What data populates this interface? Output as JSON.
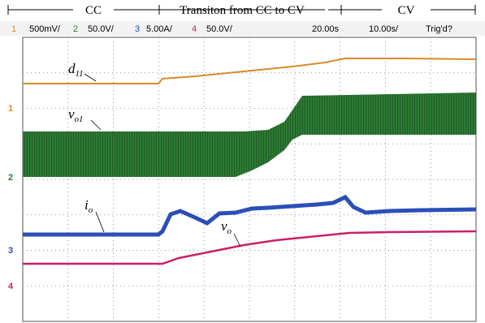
{
  "annotations": {
    "cc": "CC",
    "transition": "Transiton from CC to CV",
    "cv": "CV"
  },
  "header": {
    "channels": [
      {
        "number": "1",
        "scale": "500mV/"
      },
      {
        "number": "2",
        "scale": "50.0V/"
      },
      {
        "number": "3",
        "scale": "5.00A/"
      },
      {
        "number": "4",
        "scale": "50.0V/"
      }
    ],
    "position": "20.00s",
    "timebase": "10.00s/",
    "status": "Trig'd?"
  },
  "traces": [
    {
      "symbol": "d",
      "subscript": "11"
    },
    {
      "symbol": "v",
      "subscript": "o1"
    },
    {
      "symbol": "i",
      "subscript": "o"
    },
    {
      "symbol": "v",
      "subscript": "o"
    }
  ],
  "markers": [
    "1",
    "2",
    "3",
    "4"
  ]
}
